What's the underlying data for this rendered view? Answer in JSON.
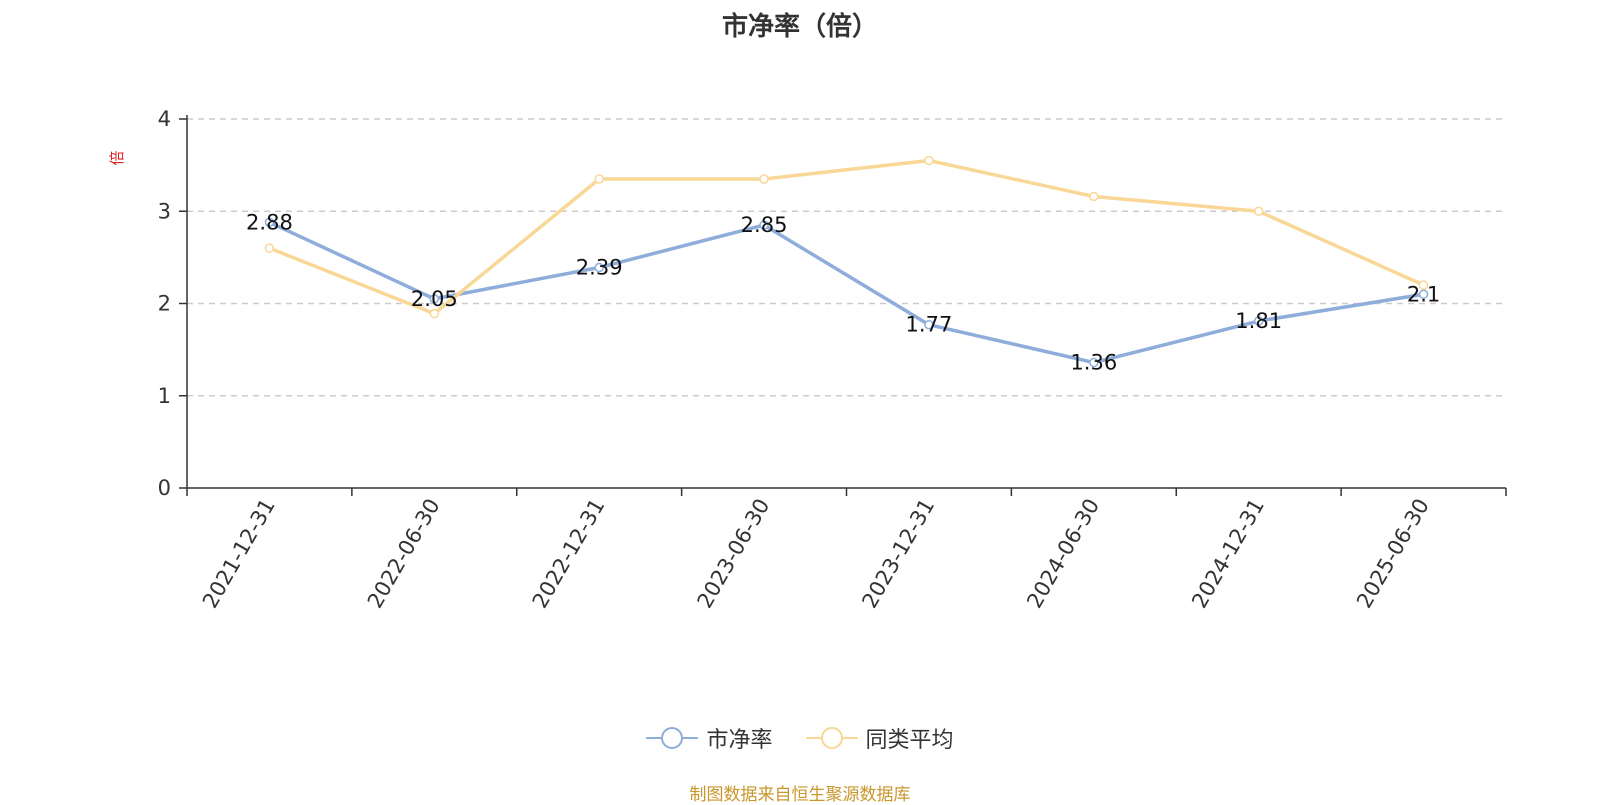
{
  "chart_data": {
    "type": "line",
    "title": "市净率（倍）",
    "ylabel": "倍",
    "xlabel": "",
    "categories": [
      "2021-12-31",
      "2022-06-30",
      "2022-12-31",
      "2023-06-30",
      "2023-12-31",
      "2024-06-30",
      "2024-12-31",
      "2025-06-30"
    ],
    "ylim": [
      0,
      4
    ],
    "yticks": [
      "0",
      "1",
      "2",
      "3",
      "4"
    ],
    "grid": true,
    "legend_position": "bottom",
    "series": [
      {
        "name": "市净率",
        "color": "#8eaddb",
        "values": [
          2.88,
          2.05,
          2.39,
          2.85,
          1.77,
          1.36,
          1.81,
          2.1
        ],
        "labels": [
          "2.88",
          "2.05",
          "2.39",
          "2.85",
          "1.77",
          "1.36",
          "1.81",
          "2.1"
        ]
      },
      {
        "name": "同类平均",
        "color": "#f9d796",
        "values": [
          2.6,
          1.89,
          3.35,
          3.35,
          3.55,
          3.16,
          3.0,
          2.2
        ]
      }
    ]
  },
  "source_note": "制图数据来自恒生聚源数据库",
  "colors": {
    "ylabel": "#e02020",
    "axis": "#333333",
    "grid": "#cccccc"
  }
}
